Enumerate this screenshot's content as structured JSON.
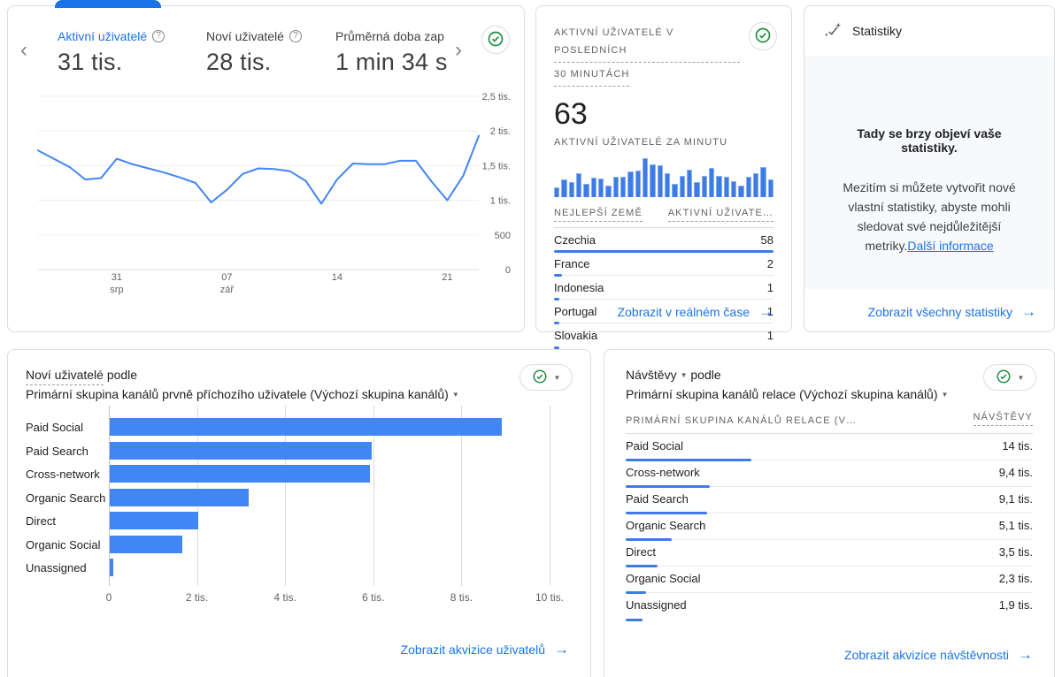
{
  "colors": {
    "accent_blue": "#1a73e8",
    "chart_blue": "#4285f4",
    "green_check": "#1e8e3e",
    "card_border": "#dadce0"
  },
  "icons": {
    "help": "?",
    "caret": "▼",
    "chevron_left": "‹",
    "chevron_right": "›",
    "arrow": "→"
  },
  "overview": {
    "metrics": [
      {
        "label": "Aktivní uživatelé",
        "value": "31 tis."
      },
      {
        "label": "Noví uživatelé",
        "value": "28 tis."
      },
      {
        "label": "Průměrná doba zap",
        "value": "1 min 34 s"
      }
    ],
    "chart_data": {
      "type": "line",
      "title": "Aktivní uživatelé",
      "y_max": 2500,
      "y_ticks": [
        "2,5 tis.",
        "2 tis.",
        "1,5 tis.",
        "1 tis.",
        "500",
        "0"
      ],
      "y_tick_values": [
        2500,
        2000,
        1500,
        1000,
        500,
        0
      ],
      "x_ticks": [
        {
          "index": 5,
          "day": "31",
          "month": "srp"
        },
        {
          "index": 12,
          "day": "07",
          "month": "zář"
        },
        {
          "index": 19,
          "day": "14",
          "month": ""
        },
        {
          "index": 26,
          "day": "21",
          "month": ""
        }
      ],
      "series": [
        {
          "name": "Aktivní uživatelé",
          "values": [
            1720,
            1600,
            1480,
            1300,
            1320,
            1600,
            1520,
            1460,
            1400,
            1330,
            1250,
            970,
            1150,
            1380,
            1460,
            1450,
            1420,
            1280,
            950,
            1300,
            1530,
            1520,
            1520,
            1570,
            1570,
            1270,
            1000,
            1350,
            1930
          ]
        }
      ]
    }
  },
  "realtime": {
    "title_line1": "AKTIVNÍ UŽIVATELÉ V POSLEDNÍCH",
    "title_line2": "30 MINUTÁCH",
    "value": "63",
    "subtitle": "AKTIVNÍ UŽIVATELÉ ZA MINUTU",
    "chart_data": {
      "type": "bar",
      "title": "Aktivní uživatelé za minutu",
      "values": [
        25,
        45,
        38,
        62,
        35,
        50,
        48,
        30,
        52,
        52,
        65,
        68,
        100,
        85,
        82,
        62,
        35,
        55,
        70,
        38,
        55,
        75,
        55,
        52,
        42,
        30,
        52,
        62,
        78,
        45
      ]
    },
    "col_country": "NEJLEPŠÍ ZEMĚ",
    "col_users": "AKTIVNÍ UŽIVATE…",
    "max_value": 58,
    "countries": [
      {
        "name": "Czechia",
        "value": 58
      },
      {
        "name": "France",
        "value": 2
      },
      {
        "name": "Indonesia",
        "value": 1
      },
      {
        "name": "Portugal",
        "value": 1
      },
      {
        "name": "Slovakia",
        "value": 1
      }
    ],
    "link": "Zobrazit v reálném čase"
  },
  "insights": {
    "title": "Statistiky",
    "headline": "Tady se brzy objeví vaše statistiky.",
    "body": "Mezitím si můžete vytvořit nové vlastní statistiky, abyste mohli sledovat své nejdůležitější metriky.",
    "link_inline": "Další informace",
    "link": "Zobrazit všechny statistiky"
  },
  "new_users": {
    "title_metric": "Noví uživatelé",
    "title_rest": " podle",
    "dimension": "Primární skupina kanálů prvně příchozího uživatele (Výchozí skupina kanálů)",
    "chart_data": {
      "type": "bar-horizontal",
      "title": "Noví uživatelé podle primární skupiny kanálů",
      "categories": [
        "Paid Social",
        "Paid Search",
        "Cross-network",
        "Organic Search",
        "Direct",
        "Organic Social",
        "Unassigned"
      ],
      "values": [
        8900,
        5950,
        5900,
        3150,
        2000,
        1650,
        80
      ],
      "x_max": 10000,
      "x_ticks": [
        "0",
        "2 tis.",
        "4 tis.",
        "6 tis.",
        "8 tis.",
        "10 tis."
      ]
    },
    "link": "Zobrazit akvizice uživatelů"
  },
  "sessions": {
    "title_metric": "Návštěvy",
    "title_rest": " podle",
    "dimension": "Primární skupina kanálů relace (Výchozí skupina kanálů)",
    "col_dimension": "PRIMÁRNÍ SKUPINA KANÁLŮ RELACE (V…",
    "col_metric": "NÁVŠTĚVY",
    "max_value": 14000,
    "rows": [
      {
        "name": "Paid Social",
        "display": "14 tis.",
        "value": 14000
      },
      {
        "name": "Cross-network",
        "display": "9,4 tis.",
        "value": 9400
      },
      {
        "name": "Paid Search",
        "display": "9,1 tis.",
        "value": 9100
      },
      {
        "name": "Organic Search",
        "display": "5,1 tis.",
        "value": 5100
      },
      {
        "name": "Direct",
        "display": "3,5 tis.",
        "value": 3500
      },
      {
        "name": "Organic Social",
        "display": "2,3 tis.",
        "value": 2300
      },
      {
        "name": "Unassigned",
        "display": "1,9 tis.",
        "value": 1900
      }
    ],
    "link": "Zobrazit akvizice návštěvnosti"
  }
}
